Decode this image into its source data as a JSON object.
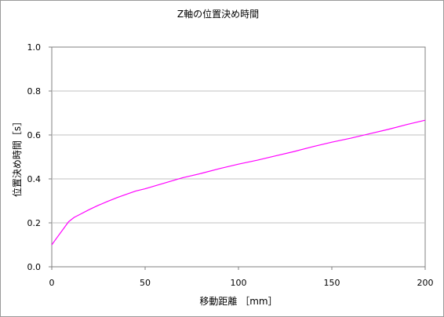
{
  "chart_data": {
    "type": "line",
    "title": "Z軸の位置決め時間",
    "xlabel": "移動距離 ［mm］",
    "ylabel": "位置決め時間［s］",
    "xlim": [
      0,
      200
    ],
    "ylim": [
      0,
      1.0
    ],
    "xticks": [
      0,
      50,
      100,
      150,
      200
    ],
    "yticks": [
      0.0,
      0.2,
      0.4,
      0.6,
      0.8,
      1.0
    ],
    "xtick_labels": [
      "0",
      "50",
      "100",
      "150",
      "200"
    ],
    "ytick_labels": [
      "0.0",
      "0.2",
      "0.4",
      "0.6",
      "0.8",
      "1.0"
    ],
    "grid": "horizontal",
    "series": [
      {
        "color": "#ff00ff",
        "x": [
          0,
          3,
          6,
          9,
          12,
          15,
          20,
          25,
          30,
          35,
          40,
          45,
          50,
          60,
          70,
          75,
          80,
          90,
          100,
          110,
          120,
          130,
          140,
          150,
          160,
          170,
          180,
          190,
          200
        ],
        "y": [
          0.1,
          0.135,
          0.17,
          0.205,
          0.225,
          0.238,
          0.26,
          0.28,
          0.298,
          0.315,
          0.33,
          0.345,
          0.355,
          0.38,
          0.405,
          0.415,
          0.425,
          0.447,
          0.467,
          0.485,
          0.505,
          0.525,
          0.547,
          0.567,
          0.585,
          0.605,
          0.625,
          0.647,
          0.667
        ]
      }
    ]
  }
}
